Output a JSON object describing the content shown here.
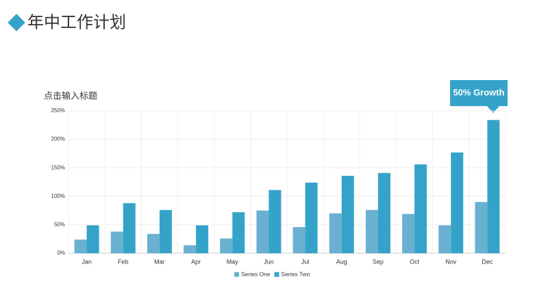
{
  "slide_title": "年中工作计划",
  "chart_data": {
    "type": "bar",
    "title": "点击输入标题",
    "annotation": "50% Growth",
    "categories": [
      "Jan",
      "Feb",
      "Mar",
      "Apr",
      "May",
      "Jun",
      "Jul",
      "Aug",
      "Sep",
      "Oct",
      "Nov",
      "Dec"
    ],
    "series": [
      {
        "name": "Series One",
        "color": "#6ab0d0",
        "values": [
          24,
          38,
          34,
          14,
          26,
          75,
          46,
          70,
          76,
          69,
          49,
          90
        ]
      },
      {
        "name": "Series Two",
        "color": "#35a3c9",
        "values": [
          49,
          88,
          76,
          49,
          72,
          111,
          124,
          136,
          141,
          156,
          177,
          234
        ]
      }
    ],
    "ylim": [
      0,
      250
    ],
    "yticks": [
      {
        "value": 0,
        "label": "0%"
      },
      {
        "value": 50,
        "label": "50%"
      },
      {
        "value": 100,
        "label": "100%"
      },
      {
        "value": 150,
        "label": "150%"
      },
      {
        "value": 200,
        "label": "200%"
      },
      {
        "value": 250,
        "label": "250%"
      }
    ],
    "grid": true,
    "legend": "bottom"
  }
}
